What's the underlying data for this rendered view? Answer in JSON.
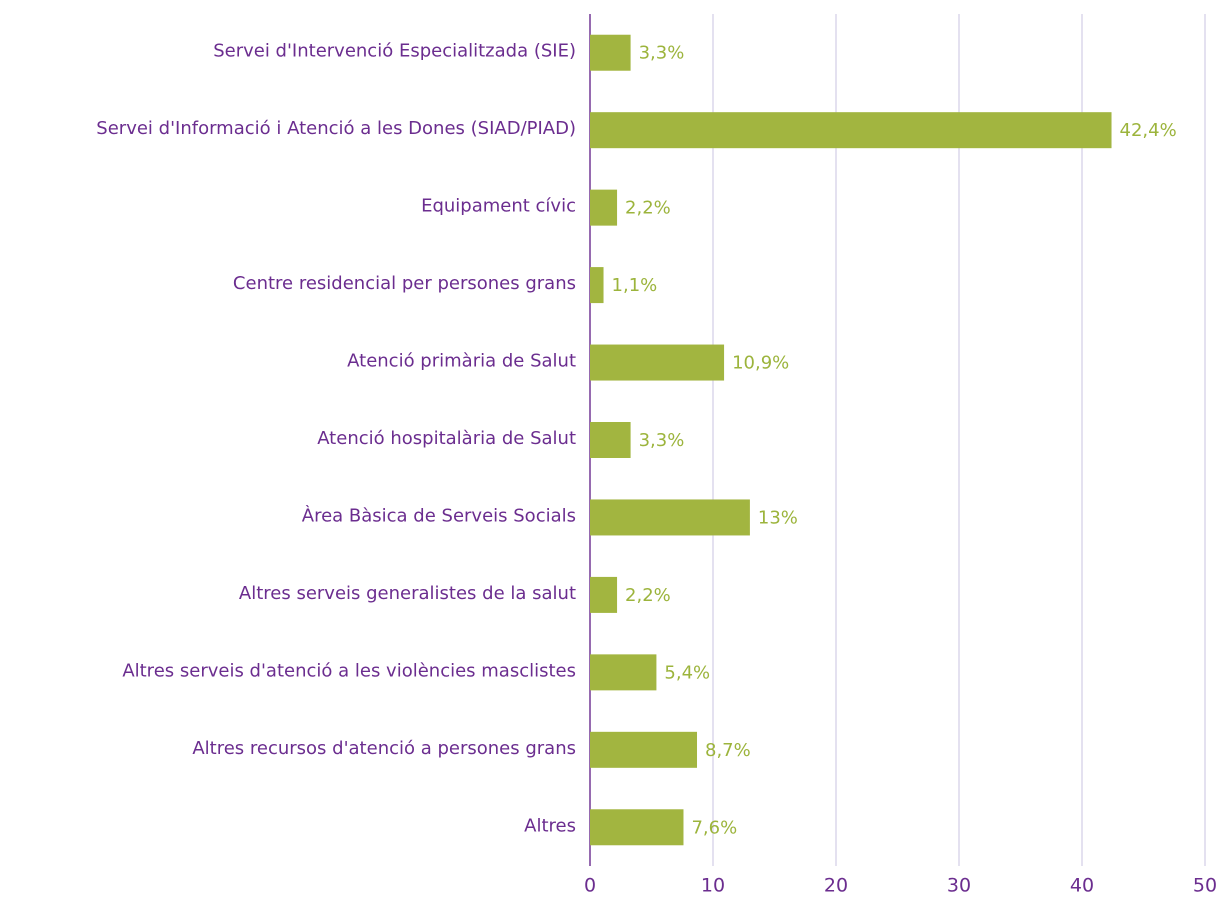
{
  "chart_data": {
    "type": "bar",
    "orientation": "horizontal",
    "categories": [
      "Servei d'Intervenció Especialitzada (SIE)",
      "Servei d'Informació i Atenció a les Dones (SIAD/PIAD)",
      "Equipament cívic",
      "Centre residencial per persones grans",
      "Atenció primària de Salut",
      "Atenció hospitalària de Salut",
      "Àrea Bàsica de Serveis Socials",
      "Altres serveis generalistes de la salut",
      "Altres serveis d'atenció a les violències masclistes",
      "Altres recursos d'atenció a persones grans",
      "Altres"
    ],
    "values": [
      3.3,
      42.4,
      2.2,
      1.1,
      10.9,
      3.3,
      13,
      2.2,
      5.4,
      8.7,
      7.6
    ],
    "value_labels": [
      "3,3%",
      "42,4%",
      "2,2%",
      "1,1%",
      "10,9%",
      "3,3%",
      "13%",
      "2,2%",
      "5,4%",
      "8,7%",
      "7,6%"
    ],
    "color": "#a2b540",
    "xlim": [
      0,
      50
    ],
    "xticks": [
      0,
      10,
      20,
      30,
      40,
      50
    ],
    "grid": true
  }
}
